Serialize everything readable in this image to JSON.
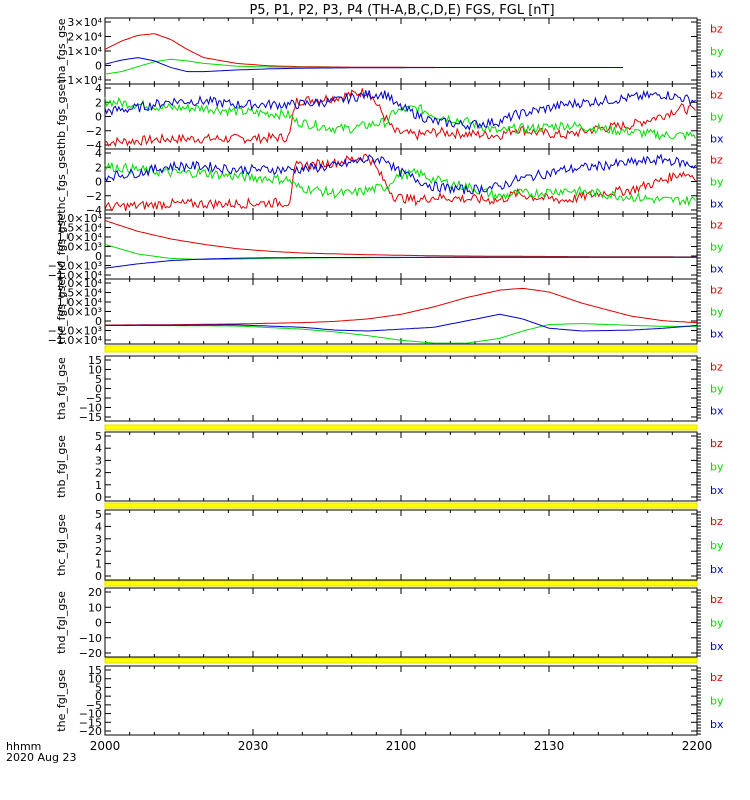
{
  "title": "P5, P1, P2, P3, P4 (TH-A,B,C,D,E) FGS, FGL [nT]",
  "time_axis": {
    "label_line1": "hhmm",
    "label_line2": "2020 Aug 23",
    "ticks": [
      "2000",
      "2030",
      "2100",
      "2130",
      "2200"
    ],
    "range": [
      "20:00",
      "22:00"
    ]
  },
  "legend_labels": [
    "bz",
    "by",
    "bx"
  ],
  "colors": {
    "bz": "#dd0000",
    "by": "#00dd00",
    "bx": "#0000cc",
    "bar": "#ffff00"
  },
  "chart_data": [
    {
      "type": "line",
      "ylabel": "tha_fgs_gse",
      "yticks": [
        "3×10⁴",
        "2×10⁴",
        "1×10⁴",
        "0",
        "−1×10⁴"
      ],
      "ylim": [
        -10000,
        30000
      ],
      "data_xlim": [
        "20:00",
        "21:45"
      ],
      "series": [
        {
          "name": "bz",
          "x": [
            0,
            5,
            10,
            15,
            20,
            25,
            30,
            40,
            50,
            60,
            75,
            90,
            105
          ],
          "y": [
            11000,
            16000,
            19500,
            20500,
            17000,
            11000,
            6000,
            2500,
            1000,
            500,
            200,
            100,
            0
          ]
        },
        {
          "name": "by",
          "x": [
            0,
            5,
            10,
            15,
            20,
            25,
            30,
            40,
            50,
            60,
            75,
            90,
            105
          ],
          "y": [
            -4000,
            -2500,
            500,
            3500,
            5000,
            4000,
            2500,
            800,
            300,
            100,
            0,
            0,
            0
          ]
        },
        {
          "name": "bx",
          "x": [
            0,
            5,
            10,
            15,
            20,
            25,
            30,
            40,
            50,
            60,
            75,
            90,
            105
          ],
          "y": [
            2000,
            4500,
            6000,
            4000,
            0,
            -2500,
            -2500,
            -1500,
            -800,
            -400,
            -200,
            -100,
            0
          ]
        }
      ]
    },
    {
      "type": "line",
      "ylabel": "thb_fgs_gse",
      "yticks": [
        "4",
        "2",
        "0",
        "−2",
        "−4"
      ],
      "ylim": [
        -5,
        4.5
      ],
      "data_xlim": [
        "20:00",
        "22:00"
      ],
      "noisy": true,
      "series": [
        {
          "name": "bz",
          "x": [
            0,
            10,
            20,
            30,
            40,
            56,
            58,
            70,
            75,
            80,
            86,
            88,
            95,
            100,
            110,
            120,
            125,
            130,
            140,
            150,
            160,
            170,
            175,
            180
          ],
          "y": [
            -4,
            -3.8,
            -3.5,
            -3.5,
            -3.5,
            -3.3,
            2,
            2.5,
            3,
            3.5,
            -1,
            -2.5,
            -3,
            -2.5,
            -2.8,
            -3,
            -2,
            -2.5,
            -3,
            -2,
            -1.5,
            0,
            1,
            0.5
          ]
        },
        {
          "name": "by",
          "x": [
            0,
            10,
            20,
            30,
            40,
            56,
            58,
            70,
            75,
            80,
            86,
            88,
            95,
            100,
            110,
            120,
            125,
            130,
            140,
            150,
            160,
            170,
            175,
            180
          ],
          "y": [
            2,
            1.5,
            1,
            1,
            0.5,
            0,
            -1,
            -2,
            -2,
            -1.5,
            -1,
            0.5,
            1,
            0,
            -1,
            -2.5,
            -2,
            -2,
            -1.5,
            -2,
            -2.5,
            -3,
            -3,
            -3
          ]
        },
        {
          "name": "bx",
          "x": [
            0,
            10,
            20,
            30,
            40,
            56,
            58,
            70,
            75,
            80,
            86,
            88,
            95,
            100,
            110,
            120,
            125,
            130,
            140,
            150,
            160,
            170,
            175,
            180
          ],
          "y": [
            0.5,
            1,
            2,
            2,
            1.5,
            1.5,
            1.5,
            2,
            2.5,
            3,
            3,
            1.5,
            0,
            -1,
            -1.5,
            -1,
            0,
            0.5,
            1.5,
            2,
            2.5,
            3,
            2.5,
            2
          ]
        }
      ]
    },
    {
      "type": "line",
      "ylabel": "thc_fgs_gse",
      "yticks": [
        "4",
        "2",
        "0",
        "−2",
        "−4"
      ],
      "ylim": [
        -5,
        4.5
      ],
      "data_xlim": [
        "20:00",
        "22:00"
      ],
      "noisy": true,
      "series": [
        {
          "name": "bz",
          "x": [
            0,
            10,
            20,
            30,
            40,
            56,
            58,
            70,
            75,
            80,
            86,
            88,
            95,
            100,
            110,
            120,
            125,
            130,
            140,
            150,
            160,
            170,
            175,
            180
          ],
          "y": [
            -4,
            -3.8,
            -3.5,
            -3.5,
            -3.5,
            -3.3,
            2,
            2.5,
            3,
            3.5,
            -1,
            -2.5,
            -3,
            -2.5,
            -2.8,
            -3,
            -2,
            -2.5,
            -3,
            -2,
            -1.5,
            0,
            1,
            0.5
          ]
        },
        {
          "name": "by",
          "x": [
            0,
            10,
            20,
            30,
            40,
            56,
            58,
            70,
            75,
            80,
            86,
            88,
            95,
            100,
            110,
            120,
            125,
            130,
            140,
            150,
            160,
            170,
            175,
            180
          ],
          "y": [
            2,
            1.5,
            1,
            1,
            0.5,
            0,
            -1,
            -2,
            -2,
            -1.5,
            -1,
            0.5,
            1,
            0,
            -1,
            -2.5,
            -2,
            -2,
            -1.5,
            -2,
            -2.5,
            -3,
            -3,
            -3
          ]
        },
        {
          "name": "bx",
          "x": [
            0,
            10,
            20,
            30,
            40,
            56,
            58,
            70,
            75,
            80,
            86,
            88,
            95,
            100,
            110,
            120,
            125,
            130,
            140,
            150,
            160,
            170,
            175,
            180
          ],
          "y": [
            0.5,
            1,
            2,
            2,
            1.5,
            1.5,
            1.5,
            2,
            2.5,
            3,
            3,
            1.5,
            0,
            -1,
            -1.5,
            -1,
            0,
            0.5,
            1.5,
            2,
            2.5,
            3,
            2.5,
            2
          ]
        }
      ]
    },
    {
      "type": "line",
      "ylabel": "thd_fgs_gse",
      "yticks": [
        "2.0×10⁴",
        "1.5×10⁴",
        "1.0×10⁴",
        "5.0×10³",
        "0",
        "−5.0×10³",
        "−1.0×10⁴"
      ],
      "ylim": [
        -10000,
        20000
      ],
      "data_xlim": [
        "20:00",
        "22:00"
      ],
      "series": [
        {
          "name": "bz",
          "x": [
            0,
            10,
            20,
            30,
            40,
            50,
            60,
            80,
            100,
            120,
            150,
            180
          ],
          "y": [
            17000,
            12000,
            8500,
            6000,
            4000,
            2800,
            2000,
            1200,
            700,
            500,
            300,
            200
          ]
        },
        {
          "name": "by",
          "x": [
            0,
            10,
            20,
            30,
            40,
            50,
            60,
            80,
            100,
            120,
            150,
            180
          ],
          "y": [
            6000,
            1500,
            -500,
            -1000,
            -800,
            -500,
            -300,
            -150,
            -50,
            0,
            0,
            0
          ]
        },
        {
          "name": "bx",
          "x": [
            0,
            10,
            20,
            30,
            40,
            50,
            60,
            80,
            100,
            120,
            150,
            180
          ],
          "y": [
            -5000,
            -3000,
            -1500,
            -800,
            -400,
            -200,
            -100,
            -50,
            0,
            0,
            0,
            0
          ]
        }
      ]
    },
    {
      "type": "line",
      "ylabel": "the_fgs_gse",
      "yticks": [
        "2.0×10⁴",
        "1.5×10⁴",
        "1.0×10⁴",
        "5.0×10³",
        "0",
        "−5.0×10³",
        "−1.0×10⁴"
      ],
      "ylim": [
        -10000,
        25000
      ],
      "data_xlim": [
        "20:00",
        "22:00"
      ],
      "series": [
        {
          "name": "bz",
          "x": [
            0,
            20,
            40,
            60,
            70,
            80,
            90,
            100,
            110,
            120,
            127,
            135,
            145,
            160,
            170,
            180
          ],
          "y": [
            200,
            400,
            800,
            1500,
            2200,
            3500,
            6000,
            10000,
            15000,
            19000,
            20000,
            18000,
            12000,
            5000,
            2500,
            1500
          ]
        },
        {
          "name": "by",
          "x": [
            0,
            20,
            40,
            60,
            70,
            80,
            90,
            100,
            110,
            120,
            127,
            135,
            145,
            160,
            170,
            180
          ],
          "y": [
            0,
            -100,
            -300,
            -2000,
            -3500,
            -5500,
            -8000,
            -9500,
            -9500,
            -7000,
            -3000,
            500,
            1000,
            0,
            -500,
            -500
          ]
        },
        {
          "name": "bx",
          "x": [
            0,
            20,
            40,
            60,
            70,
            80,
            90,
            100,
            110,
            120,
            127,
            135,
            145,
            160,
            170,
            180
          ],
          "y": [
            0,
            100,
            300,
            -1000,
            -2500,
            -3000,
            -2000,
            -1000,
            2500,
            6000,
            3500,
            -1500,
            -3000,
            -2500,
            -1500,
            0
          ]
        }
      ]
    },
    {
      "type": "line",
      "ylabel": "tha_fgl_gse",
      "yticks": [
        "15",
        "10",
        "5",
        "0",
        "−5",
        "−10",
        "−15"
      ],
      "ylim": [
        -17,
        17
      ],
      "series": []
    },
    {
      "type": "line",
      "ylabel": "thb_fgl_gse",
      "yticks": [
        "5",
        "4",
        "3",
        "2",
        "1",
        "0"
      ],
      "ylim": [
        -0.3,
        5.3
      ],
      "series": []
    },
    {
      "type": "line",
      "ylabel": "thc_fgl_gse",
      "yticks": [
        "5",
        "4",
        "3",
        "2",
        "1",
        "0"
      ],
      "ylim": [
        -0.3,
        5.3
      ],
      "series": []
    },
    {
      "type": "line",
      "ylabel": "thd_fgl_gse",
      "yticks": [
        "20",
        "10",
        "0",
        "−10",
        "−20"
      ],
      "ylim": [
        -25,
        25
      ],
      "series": []
    },
    {
      "type": "line",
      "ylabel": "the_fgl_gse",
      "yticks": [
        "15",
        "10",
        "5",
        "0",
        "−5",
        "−10",
        "−15",
        "−20"
      ],
      "ylim": [
        -21,
        17
      ],
      "series": []
    }
  ]
}
